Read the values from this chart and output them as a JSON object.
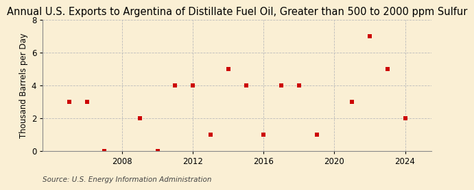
{
  "title": "Annual U.S. Exports to Argentina of Distillate Fuel Oil, Greater than 500 to 2000 ppm Sulfur",
  "ylabel": "Thousand Barrels per Day",
  "source": "Source: U.S. Energy Information Administration",
  "years": [
    2005,
    2006,
    2007,
    2009,
    2010,
    2011,
    2012,
    2013,
    2014,
    2015,
    2016,
    2017,
    2018,
    2019,
    2021,
    2022,
    2023,
    2024
  ],
  "values": [
    3,
    3,
    0,
    2,
    0,
    4,
    4,
    1,
    5,
    4,
    1,
    4,
    4,
    1,
    3,
    7,
    5,
    2
  ],
  "marker_color": "#cc0000",
  "marker_size": 4,
  "background_color": "#faefd4",
  "grid_color": "#bbbbbb",
  "xlim": [
    2003.5,
    2025.5
  ],
  "ylim": [
    0,
    8
  ],
  "xticks": [
    2008,
    2012,
    2016,
    2020,
    2024
  ],
  "yticks": [
    0,
    2,
    4,
    6,
    8
  ],
  "title_fontsize": 10.5,
  "label_fontsize": 8.5,
  "source_fontsize": 7.5,
  "tick_fontsize": 8.5
}
